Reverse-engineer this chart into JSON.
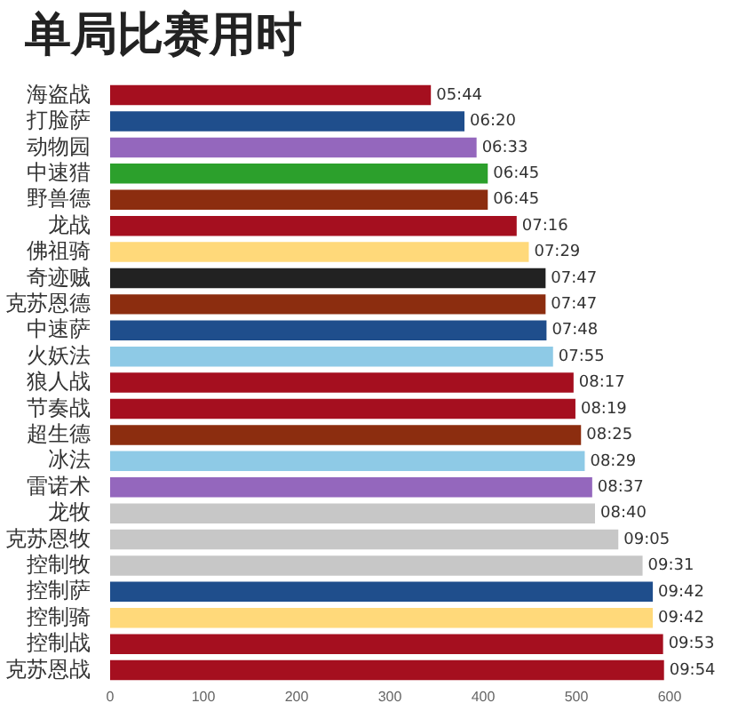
{
  "chart_data": {
    "type": "bar",
    "orientation": "horizontal",
    "title": "单局比赛用时",
    "categories": [
      "海盗战",
      "打脸萨",
      "动物园",
      "中速猎",
      "野兽德",
      "龙战",
      "佛祖骑",
      "奇迹贼",
      "克苏恩德",
      "中速萨",
      "火妖法",
      "狼人战",
      "节奏战",
      "超生德",
      "冰法",
      "雷诺术",
      "龙牧",
      "克苏恩牧",
      "控制牧",
      "控制萨",
      "控制骑",
      "控制战",
      "克苏恩战"
    ],
    "values": [
      344,
      380,
      393,
      405,
      405,
      436,
      449,
      467,
      467,
      468,
      475,
      497,
      499,
      505,
      509,
      517,
      520,
      545,
      571,
      582,
      582,
      593,
      594
    ],
    "value_labels": [
      "05:44",
      "06:20",
      "06:33",
      "06:45",
      "06:45",
      "07:16",
      "07:29",
      "07:47",
      "07:47",
      "07:48",
      "07:55",
      "08:17",
      "08:19",
      "08:25",
      "08:29",
      "08:37",
      "08:40",
      "09:05",
      "09:31",
      "09:42",
      "09:42",
      "09:53",
      "09:54"
    ],
    "colors": [
      "#a50f1f",
      "#1f4e8c",
      "#9467bd",
      "#2ca02c",
      "#8c2d0f",
      "#a50f1f",
      "#ffd97a",
      "#222222",
      "#8c2d0f",
      "#1f4e8c",
      "#8ecae6",
      "#a50f1f",
      "#a50f1f",
      "#8c2d0f",
      "#8ecae6",
      "#9467bd",
      "#c7c7c7",
      "#c7c7c7",
      "#c7c7c7",
      "#1f4e8c",
      "#ffd97a",
      "#a50f1f",
      "#a50f1f"
    ],
    "xlim": [
      0,
      600
    ],
    "xticks": [
      0,
      100,
      200,
      300,
      400,
      500,
      600
    ],
    "grid": false,
    "legend": false
  }
}
